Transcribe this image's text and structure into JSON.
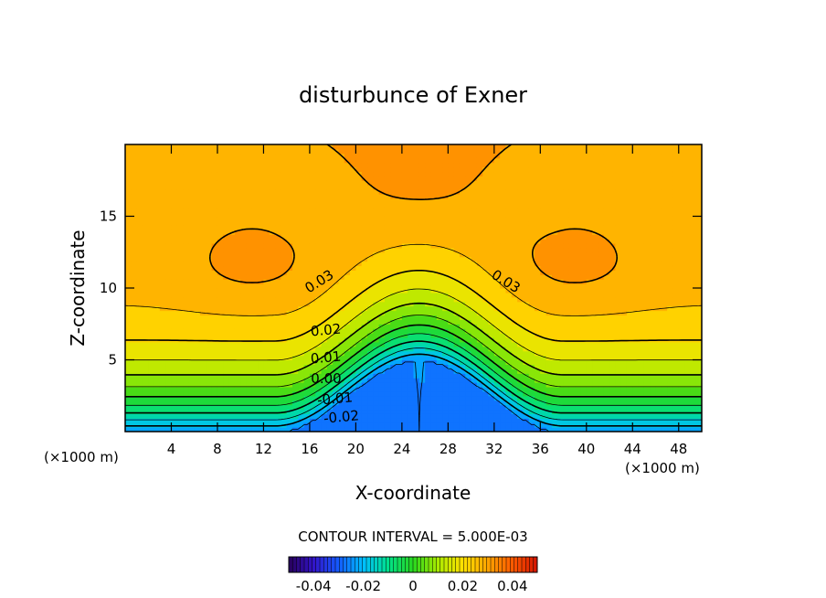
{
  "chart_data": {
    "type": "heatmap",
    "subtype": "filled-contour",
    "title": "disturbunce of Exner",
    "xlabel": "X-coordinate",
    "ylabel": "Z-coordinate",
    "x_unit_left": "(×1000 m)",
    "x_unit_right": "(×1000 m)",
    "xlim": [
      0,
      50
    ],
    "ylim": [
      0,
      20
    ],
    "x_ticks": [
      4,
      8,
      12,
      16,
      20,
      24,
      28,
      32,
      36,
      40,
      44,
      48
    ],
    "y_ticks": [
      5,
      10,
      15
    ],
    "contour_interval_text": "CONTOUR INTERVAL = 5.000E-03",
    "contour_labels": [
      {
        "text": "0.03"
      },
      {
        "text": "0.03"
      },
      {
        "text": "0.02"
      },
      {
        "text": "0.01"
      },
      {
        "text": "0.00"
      },
      {
        "text": "-0.01"
      },
      {
        "text": "-0.02"
      }
    ],
    "colorbar": {
      "ticks": [
        "-0.04",
        "-0.02",
        "0",
        "0.02",
        "0.04"
      ],
      "range": [
        -0.05,
        0.05
      ],
      "colormap": "rainbow"
    },
    "grid": false,
    "legend": "none"
  }
}
